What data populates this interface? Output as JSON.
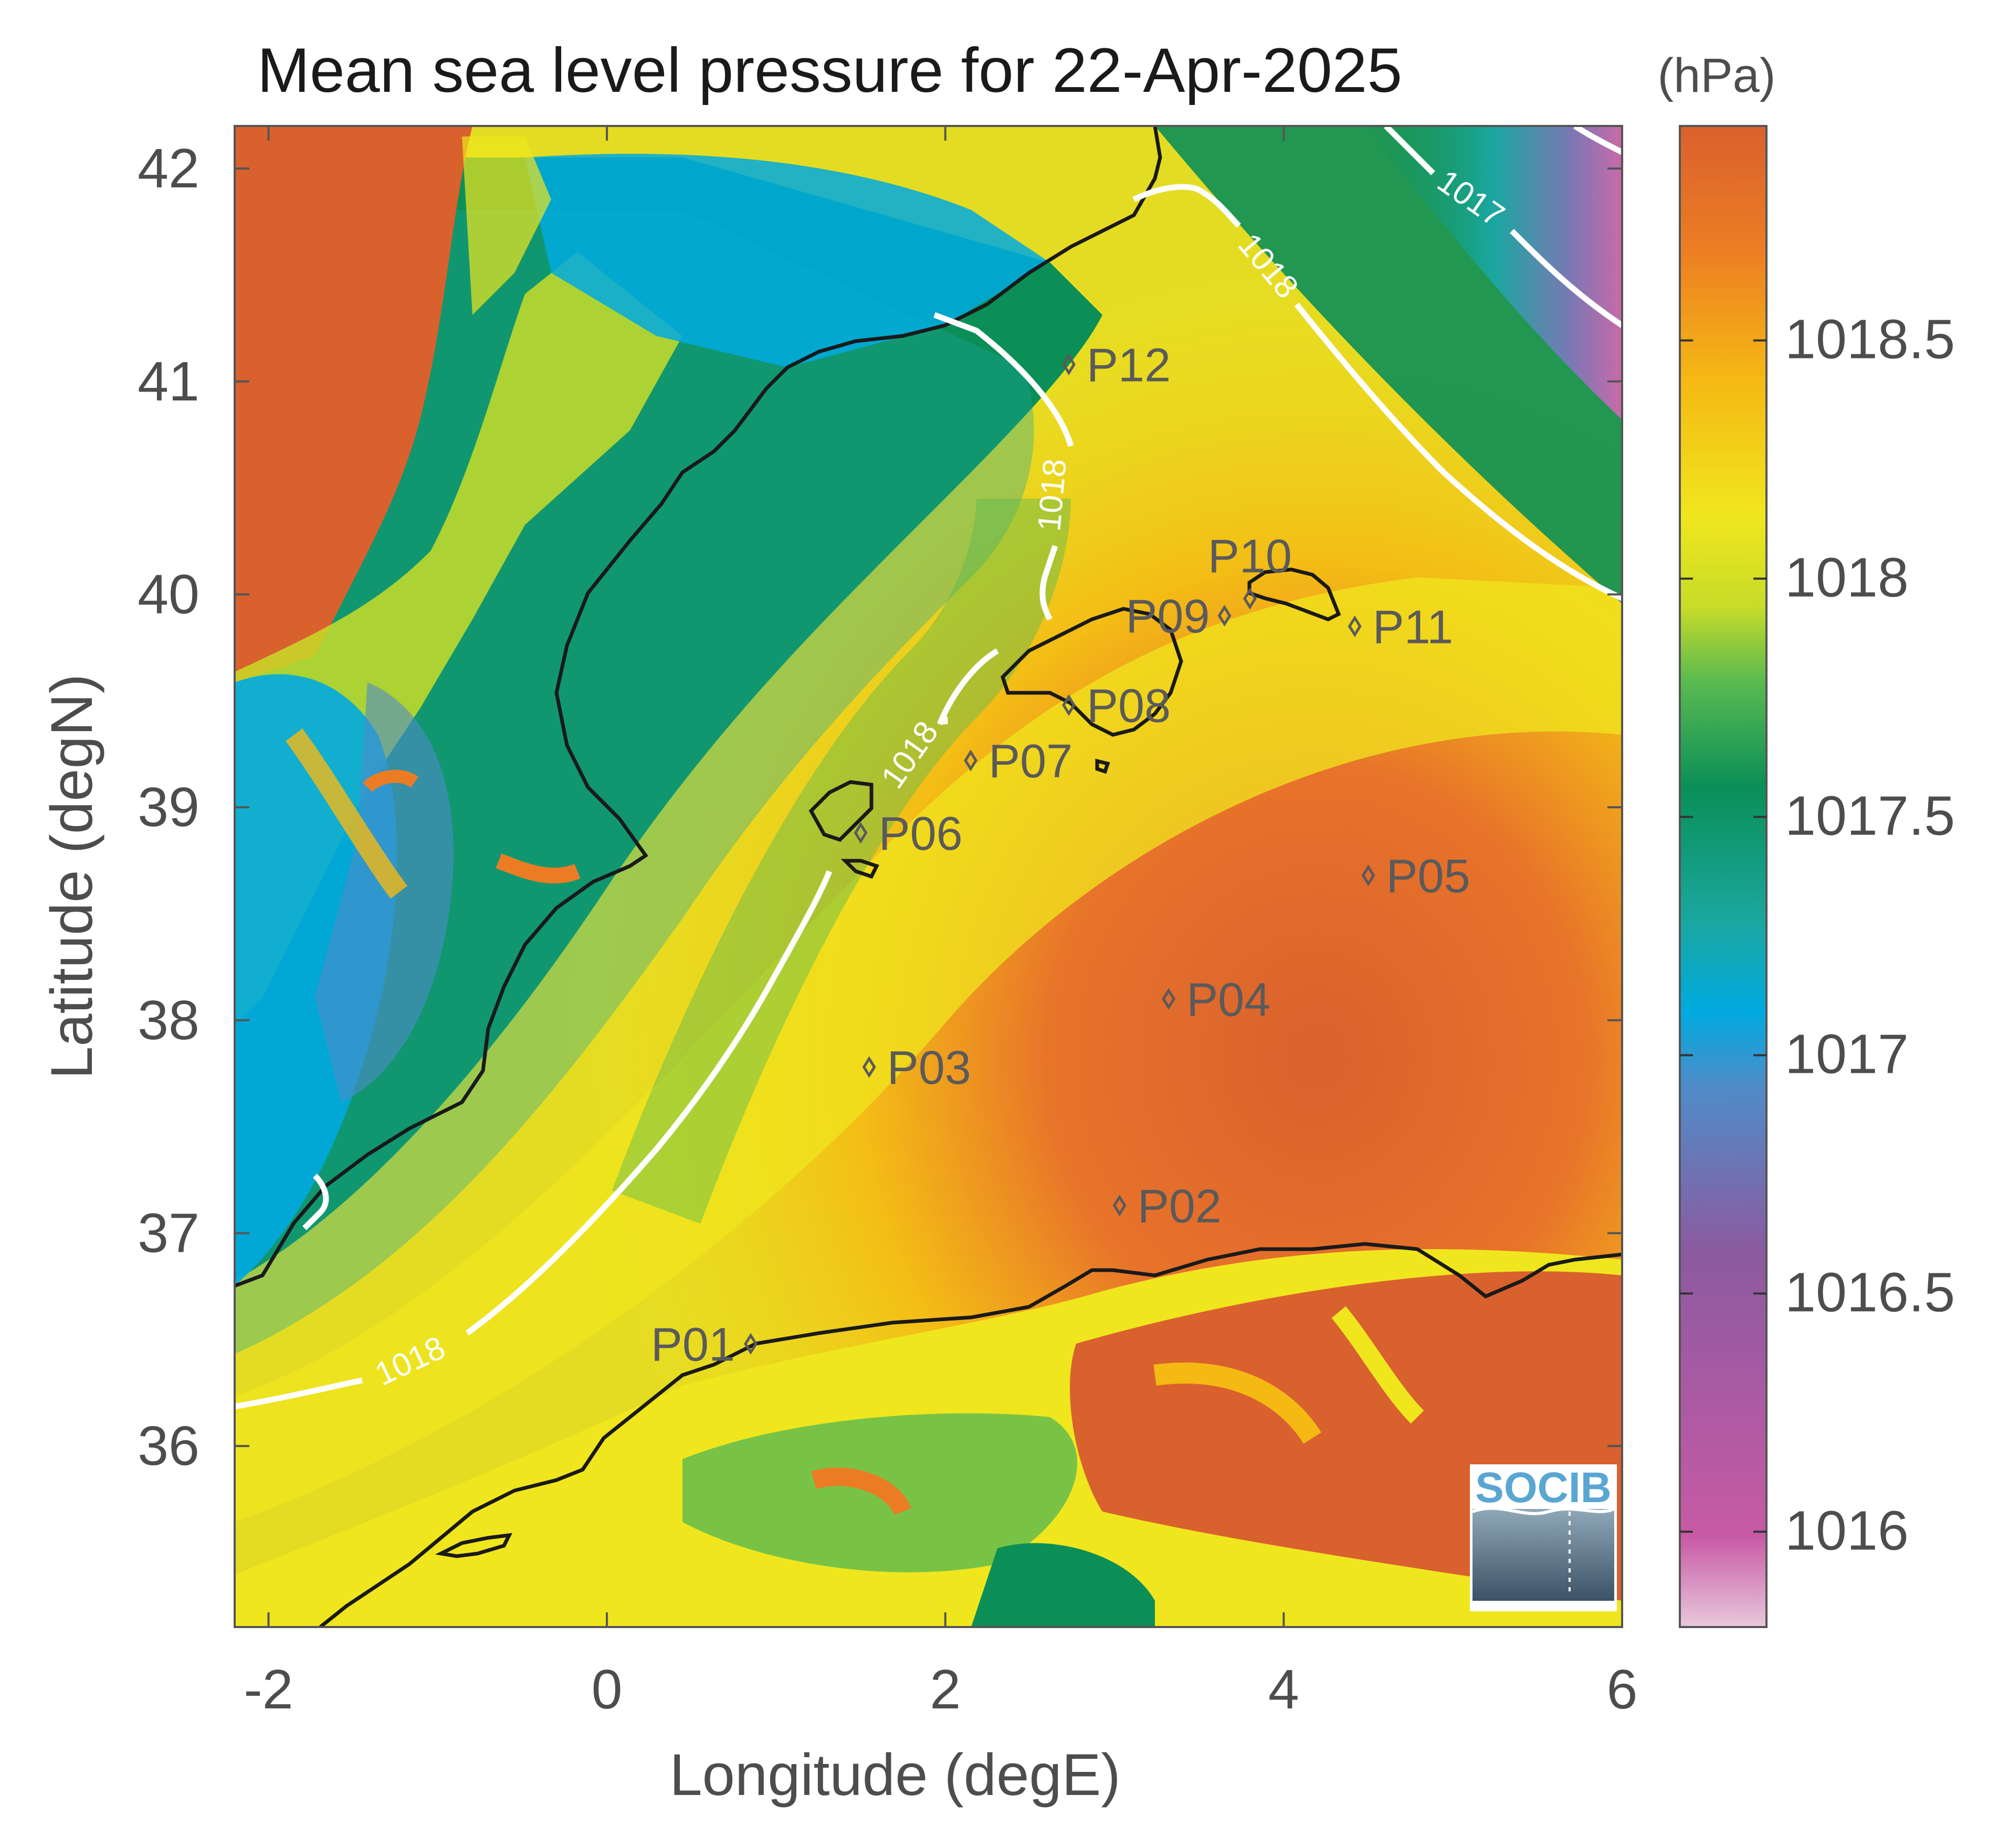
{
  "title": "Mean sea level pressure for 22-Apr-2025",
  "units": "(hPa)",
  "x_axis": {
    "label": "Longitude (degE)",
    "range": [
      -2.2,
      6.0
    ],
    "ticks": [
      {
        "value": -2,
        "label": "-2"
      },
      {
        "value": 0,
        "label": "0"
      },
      {
        "value": 2,
        "label": "2"
      },
      {
        "value": 4,
        "label": "4"
      },
      {
        "value": 6,
        "label": "6"
      }
    ]
  },
  "y_axis": {
    "label": "Latitude (degN)",
    "range": [
      35.15,
      42.2
    ],
    "ticks": [
      {
        "value": 36,
        "label": "36"
      },
      {
        "value": 37,
        "label": "37"
      },
      {
        "value": 38,
        "label": "38"
      },
      {
        "value": 39,
        "label": "39"
      },
      {
        "value": 40,
        "label": "40"
      },
      {
        "value": 41,
        "label": "41"
      },
      {
        "value": 42,
        "label": "42"
      }
    ]
  },
  "colorbar": {
    "range": [
      1015.8,
      1018.95
    ],
    "ticks": [
      {
        "value": 1016,
        "label": "1016"
      },
      {
        "value": 1016.5,
        "label": "1016.5"
      },
      {
        "value": 1017,
        "label": "1017"
      },
      {
        "value": 1017.5,
        "label": "1017.5"
      },
      {
        "value": 1018,
        "label": "1018"
      },
      {
        "value": 1018.5,
        "label": "1018.5"
      }
    ],
    "colors": [
      "#e8c8dc",
      "#c85aa5",
      "#8c5aa0",
      "#4f8cc8",
      "#00aae0",
      "#1aa7a0",
      "#0b8f57",
      "#5aba50",
      "#c8dc28",
      "#f0e61e",
      "#f5b914",
      "#ec7c24",
      "#d9612d"
    ]
  },
  "contours": [
    {
      "label": "1018"
    },
    {
      "label": "1018"
    },
    {
      "label": "1018"
    },
    {
      "label": "1018"
    },
    {
      "label": "1017"
    }
  ],
  "stations": [
    {
      "name": "P01",
      "lon": 0.85,
      "lat": 36.48
    },
    {
      "name": "P02",
      "lon": 3.03,
      "lat": 37.13
    },
    {
      "name": "P03",
      "lon": 1.55,
      "lat": 37.78
    },
    {
      "name": "P04",
      "lon": 3.32,
      "lat": 38.1
    },
    {
      "name": "P05",
      "lon": 4.5,
      "lat": 38.68
    },
    {
      "name": "P06",
      "lon": 1.5,
      "lat": 38.88
    },
    {
      "name": "P07",
      "lon": 2.15,
      "lat": 39.22
    },
    {
      "name": "P08",
      "lon": 2.73,
      "lat": 39.48
    },
    {
      "name": "P09",
      "lon": 3.65,
      "lat": 39.9
    },
    {
      "name": "P10",
      "lon": 3.8,
      "lat": 39.98
    },
    {
      "name": "P11",
      "lon": 4.42,
      "lat": 39.85
    },
    {
      "name": "P12",
      "lon": 2.73,
      "lat": 41.08
    }
  ],
  "logo": {
    "text": "SOCIB"
  }
}
